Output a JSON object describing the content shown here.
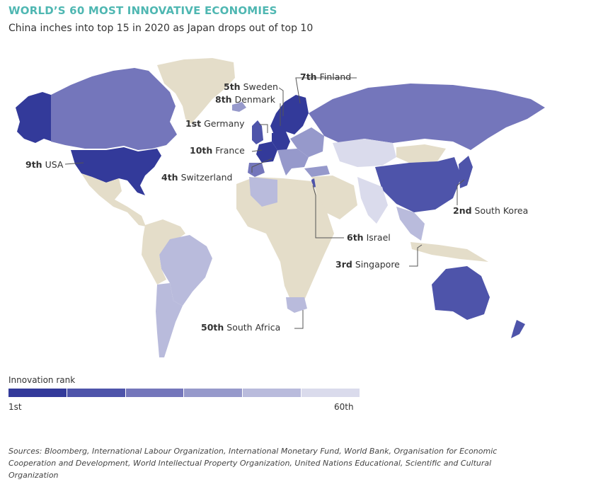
{
  "header": {
    "title": "WORLD’S 60 MOST INNOVATIVE ECONOMIES",
    "subtitle": "China inches into top 15 in 2020 as Japan drops out of top 10"
  },
  "colors": {
    "title": "#4fb7b2",
    "land_unranked": "#e4ddc9",
    "scale": [
      "#333a9a",
      "#4e54aa",
      "#7476bb",
      "#9699cb",
      "#b9bbdc",
      "#dadbec"
    ]
  },
  "labels": [
    {
      "rank": "7th",
      "country": "Finland"
    },
    {
      "rank": "5th",
      "country": "Sweden"
    },
    {
      "rank": "8th",
      "country": "Denmark"
    },
    {
      "rank": "1st",
      "country": "Germany"
    },
    {
      "rank": "10th",
      "country": "France"
    },
    {
      "rank": "9th",
      "country": "USA"
    },
    {
      "rank": "4th",
      "country": "Switzerland"
    },
    {
      "rank": "2nd",
      "country": "South Korea"
    },
    {
      "rank": "6th",
      "country": "Israel"
    },
    {
      "rank": "3rd",
      "country": "Singapore"
    },
    {
      "rank": "50th",
      "country": "South Africa"
    }
  ],
  "legend": {
    "title": "Innovation rank",
    "min_label": "1st",
    "max_label": "60th"
  },
  "sources": "Sources: Bloomberg, International Labour Organization, International Monetary Fund, World Bank, Organisation for Economic Cooperation and Development, World Intellectual Property Organization, United Nations Educational, Scientific and Cultural Organization"
}
